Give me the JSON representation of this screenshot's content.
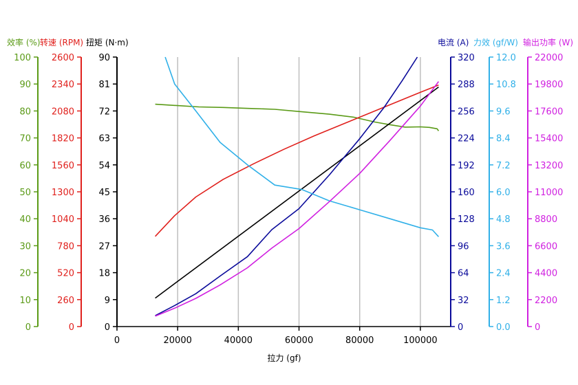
{
  "chart_data": {
    "type": "line",
    "xlabel": "拉力 (gf)",
    "xlim": [
      0,
      110000
    ],
    "xticks": [
      0,
      20000,
      40000,
      60000,
      80000,
      100000
    ],
    "grid": "vertical",
    "axes": [
      {
        "id": "efficiency",
        "side": "left",
        "title": "效率 (%)",
        "color": "#5a9a16",
        "min": 0,
        "max": 100,
        "ticks": [
          "0",
          "10",
          "20",
          "30",
          "40",
          "50",
          "60",
          "70",
          "80",
          "90",
          "100"
        ]
      },
      {
        "id": "rpm",
        "side": "left",
        "title": "转速 (RPM)",
        "color": "#e0201c",
        "min": 0,
        "max": 2600,
        "ticks": [
          "0",
          "260",
          "520",
          "780",
          "1040",
          "1300",
          "1560",
          "1820",
          "2080",
          "2340",
          "2600"
        ]
      },
      {
        "id": "torque",
        "side": "left",
        "title": "扭矩 (N·m)",
        "color": "#000000",
        "min": 0,
        "max": 90,
        "ticks": [
          "0",
          "9",
          "18",
          "27",
          "36",
          "45",
          "54",
          "63",
          "72",
          "81",
          "90"
        ]
      },
      {
        "id": "current",
        "side": "right",
        "title": "电流 (A)",
        "color": "#0a0a9a",
        "min": 0,
        "max": 320,
        "ticks": [
          "0",
          "32",
          "64",
          "96",
          "128",
          "160",
          "192",
          "224",
          "256",
          "288",
          "320"
        ]
      },
      {
        "id": "force_eff",
        "side": "right",
        "title": "力效 (gf/W)",
        "color": "#30b0e8",
        "min": 0,
        "max": 12,
        "ticks": [
          "0.0",
          "1.2",
          "2.4",
          "3.6",
          "4.8",
          "6.0",
          "7.2",
          "8.4",
          "9.6",
          "10.8",
          "12.0"
        ]
      },
      {
        "id": "power",
        "side": "right",
        "title": "输出功率 (W)",
        "color": "#d020e0",
        "min": 0,
        "max": 22000,
        "ticks": [
          "0",
          "2200",
          "4400",
          "6600",
          "8800",
          "11000",
          "13200",
          "15400",
          "17600",
          "19800",
          "22000"
        ]
      }
    ],
    "series": [
      {
        "axis": "efficiency",
        "color": "#5a9a16",
        "x": [
          12600,
          20000,
          27000,
          35000,
          45000,
          52000,
          60000,
          70000,
          78000,
          85000,
          90000,
          95000,
          100000,
          103000,
          105500,
          106000
        ],
        "y": [
          82.5,
          82,
          81.5,
          81.3,
          80.9,
          80.6,
          79.8,
          78.8,
          77.7,
          75.9,
          74.9,
          74.0,
          74.1,
          73.9,
          73.4,
          72.6
        ]
      },
      {
        "axis": "rpm",
        "color": "#e0201c",
        "x": [
          12600,
          19000,
          26000,
          35000,
          45000,
          55000,
          65000,
          75000,
          85000,
          95000,
          100000,
          106000
        ],
        "y": [
          870,
          1070,
          1250,
          1420,
          1570,
          1710,
          1840,
          1960,
          2080,
          2200,
          2260,
          2330
        ]
      },
      {
        "axis": "torque",
        "color": "#000000",
        "x": [
          12600,
          106000
        ],
        "y": [
          9.5,
          80
        ]
      },
      {
        "axis": "current",
        "color": "#0a0a9a",
        "x": [
          12600,
          19000,
          26000,
          34000,
          43000,
          51000,
          60000,
          70000,
          80000,
          88000,
          94000,
          99000
        ],
        "y": [
          13,
          25,
          39,
          60,
          83,
          115,
          140,
          180,
          223,
          260,
          292,
          320
        ]
      },
      {
        "axis": "force_eff",
        "color": "#30b0e8",
        "x": [
          15900,
          19000,
          26000,
          34000,
          43000,
          52000,
          61000,
          70000,
          80000,
          90000,
          100000,
          104000,
          106000
        ],
        "y": [
          12.0,
          10.8,
          9.6,
          8.2,
          7.2,
          6.3,
          6.1,
          5.6,
          5.2,
          4.8,
          4.4,
          4.3,
          4.0
        ]
      },
      {
        "axis": "power",
        "color": "#d020e0",
        "x": [
          12600,
          19000,
          26000,
          34000,
          43000,
          51000,
          60000,
          70000,
          80000,
          90000,
          100000,
          106000
        ],
        "y": [
          850,
          1500,
          2300,
          3400,
          4800,
          6400,
          8000,
          10200,
          12500,
          15200,
          18000,
          20000
        ]
      }
    ]
  }
}
